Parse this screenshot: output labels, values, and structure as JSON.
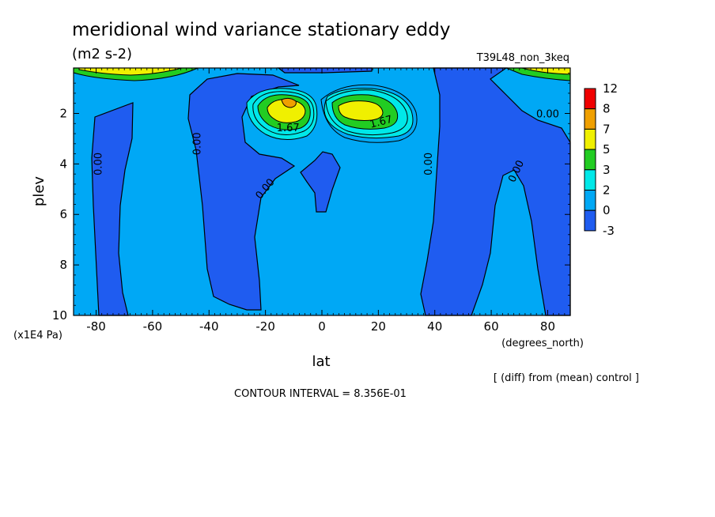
{
  "header": {
    "title": "meridional wind variance  stationary eddy",
    "units": "(m2 s-2)",
    "run_name": "T39L48_non_3keq"
  },
  "footer": {
    "diff_note": "[ (diff) from (mean) control ]",
    "contour_interval": "CONTOUR INTERVAL = 8.356E-01"
  },
  "colors": {
    "lt_m3": "#1f5cf0",
    "lvl_0_2": "#00a8f5",
    "lvl_2_3": "#00e8e8",
    "lvl_3_5": "#22cc22",
    "lvl_5_7": "#f0f000",
    "lvl_7_8": "#f0a000",
    "lvl_8_12": "#f00000"
  },
  "chart_data": {
    "type": "heatmap",
    "title": "meridional wind variance  stationary eddy",
    "xlabel": "lat",
    "xunits": "(degrees_north)",
    "ylabel": "plev",
    "yunits": "(x1E4 Pa)",
    "xlim": [
      -88,
      88
    ],
    "ylim": [
      10,
      0.2
    ],
    "x_ticks": [
      -80,
      -60,
      -40,
      -20,
      0,
      20,
      40,
      60,
      80
    ],
    "y_ticks": [
      2,
      4,
      6,
      8,
      10
    ],
    "colorbar": {
      "levels": [
        "12",
        "8",
        "7",
        "5",
        "3",
        "2",
        "0",
        "-3"
      ],
      "colors": [
        "#f00000",
        "#f0a000",
        "#f0f000",
        "#22cc22",
        "#00e8e8",
        "#00a8f5",
        "#1f5cf0"
      ]
    },
    "contour_labels": [
      {
        "text": "0.00",
        "lat": -79,
        "plev": 4.0,
        "rotate": -90
      },
      {
        "text": "0.00",
        "lat": -44,
        "plev": 3.2,
        "rotate": -90
      },
      {
        "text": "0.00",
        "lat": -20,
        "plev": 5.0,
        "rotate": -50
      },
      {
        "text": "0.00",
        "lat": 38,
        "plev": 4.0,
        "rotate": -90
      },
      {
        "text": "0.00",
        "lat": 69,
        "plev": 4.3,
        "rotate": -65
      },
      {
        "text": "0.00",
        "lat": 80,
        "plev": 2.05,
        "rotate": 0
      },
      {
        "text": "1.67",
        "lat": -12,
        "plev": 2.6,
        "rotate": 0
      },
      {
        "text": "1.67",
        "lat": 21,
        "plev": 2.35,
        "rotate": -15
      }
    ]
  }
}
